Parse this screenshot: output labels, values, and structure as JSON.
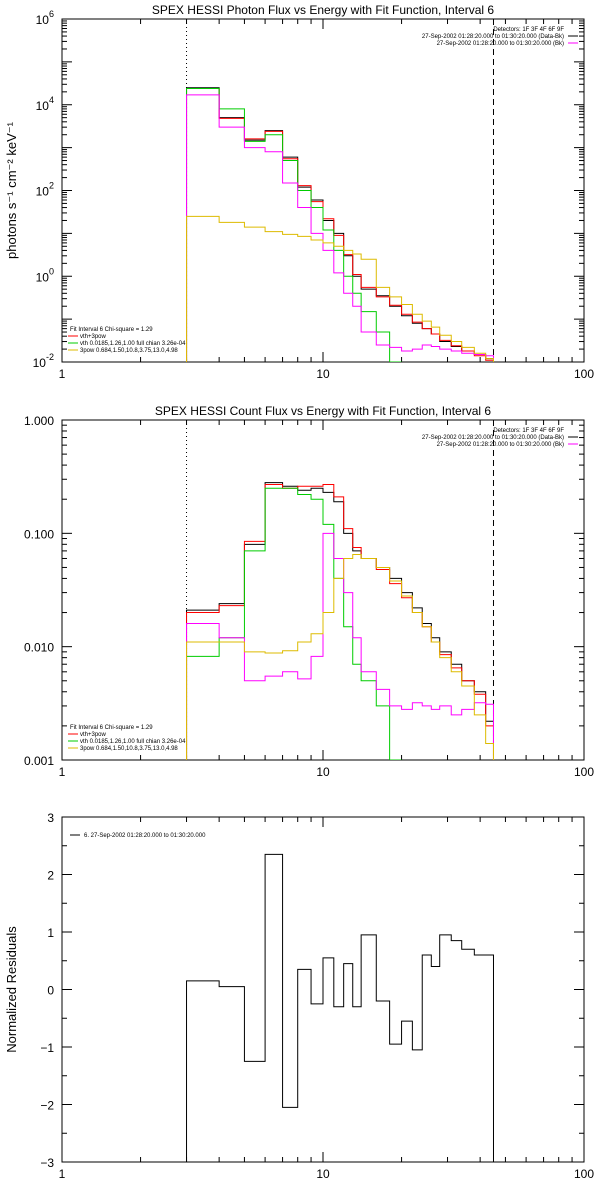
{
  "chart_data": [
    {
      "type": "line",
      "step": true,
      "title": "SPEX HESSI Photon Flux vs Energy with Fit Function, Interval 6",
      "ylabel": "photons s⁻¹ cm⁻² keV⁻¹",
      "xscale": "log",
      "yscale": "log",
      "xlim": [
        1,
        100
      ],
      "ylim": [
        0.01,
        1000000
      ],
      "x_ticks": [
        {
          "value": 1,
          "label": "1"
        },
        {
          "value": 10,
          "label": "10"
        },
        {
          "value": 100,
          "label": "100"
        }
      ],
      "y_ticks": [
        {
          "value": 0.01,
          "base": "10",
          "exp": "-2"
        },
        {
          "value": 1,
          "base": "10",
          "exp": "0"
        },
        {
          "value": 100,
          "base": "10",
          "exp": "2"
        },
        {
          "value": 10000,
          "base": "10",
          "exp": "4"
        },
        {
          "value": 1000000,
          "base": "10",
          "exp": "6"
        }
      ],
      "vlines": [
        {
          "x": 3,
          "style": "dotted"
        },
        {
          "x": 45,
          "style": "dashed"
        }
      ],
      "legend_topright": [
        {
          "text": "Detectors: 1F 3F 4F 6F 9F",
          "color": ""
        },
        {
          "text": "27-Sep-2002 01:28:20.000 to 01:30:20.000 (Data-Bk)",
          "color": "#000000"
        },
        {
          "text": "27-Sep-2002 01:28:20.000 to 01:30:20.000 (Bk)",
          "color": "#ff00ff"
        }
      ],
      "legend_bottomleft": [
        {
          "text": "Fit Interval 6    Chi-square = 1.29",
          "color": ""
        },
        {
          "text": "vth+3pow",
          "color": "#ff0000"
        },
        {
          "text": "vth 0.0185,1.26,1.00  full chian 3.26e-04",
          "color": "#00cc00"
        },
        {
          "text": "3pow 0.684,1.50,10.8,3.75,13.0,4.98",
          "color": "#ddbb00"
        }
      ],
      "edges": [
        3,
        4,
        5,
        6,
        7,
        8,
        9,
        10,
        11,
        12,
        13,
        14,
        16,
        18,
        20,
        22,
        24,
        26,
        28,
        31,
        34,
        38,
        42,
        45
      ],
      "series": [
        {
          "color": "#000000",
          "values": [
            25000,
            5000,
            1500,
            2500,
            600,
            120,
            60,
            20,
            10,
            3,
            1,
            0.5,
            0.35,
            0.2,
            0.12,
            0.08,
            0.06,
            0.045,
            0.03,
            0.023,
            0.018,
            0.015,
            0.012
          ]
        },
        {
          "color": "#ff0000",
          "values": [
            24000,
            4800,
            1600,
            2400,
            550,
            130,
            55,
            22,
            9,
            3.2,
            1.1,
            0.55,
            0.33,
            0.21,
            0.13,
            0.085,
            0.06,
            0.045,
            0.032,
            0.024,
            0.018,
            0.014,
            0.011
          ]
        },
        {
          "color": "#00cc00",
          "values": [
            24000,
            8000,
            1400,
            2000,
            500,
            100,
            40,
            12,
            4,
            1,
            0.4,
            0.15,
            0.05,
            0.01
          ]
        },
        {
          "color": "#ff00ff",
          "values": [
            17000,
            3000,
            1000,
            800,
            150,
            40,
            10,
            4,
            1.2,
            0.4,
            0.2,
            0.05,
            0.025,
            0.022,
            0.018,
            0.02,
            0.025,
            0.023,
            0.02,
            0.018,
            0.016,
            0.015,
            0.014
          ]
        },
        {
          "color": "#ddbb00",
          "values": [
            25,
            18,
            14,
            11,
            9.5,
            8.5,
            7,
            6,
            5,
            4,
            3.3,
            2.5,
            0.55,
            0.33,
            0.22,
            0.13,
            0.09,
            0.065,
            0.042,
            0.03,
            0.022,
            0.016,
            0.012
          ]
        }
      ]
    },
    {
      "type": "line",
      "step": true,
      "title": "SPEX HESSI Count Flux vs Energy with Fit Function, Interval 6",
      "ylabel": "",
      "xscale": "log",
      "yscale": "log",
      "xlim": [
        1,
        100
      ],
      "ylim": [
        0.001,
        1
      ],
      "x_ticks": [
        {
          "value": 1,
          "label": "1"
        },
        {
          "value": 10,
          "label": "10"
        },
        {
          "value": 100,
          "label": "100"
        }
      ],
      "y_ticks": [
        {
          "value": 0.001,
          "label": "0.001"
        },
        {
          "value": 0.01,
          "label": "0.010"
        },
        {
          "value": 0.1,
          "label": "0.100"
        },
        {
          "value": 1,
          "label": "1.000"
        }
      ],
      "vlines": [
        {
          "x": 3,
          "style": "dotted"
        },
        {
          "x": 45,
          "style": "dashed"
        }
      ],
      "legend_topright": [
        {
          "text": "Detectors: 1F 3F 4F 6F 9F",
          "color": ""
        },
        {
          "text": "27-Sep-2002 01:28:20.000 to 01:30:20.000 (Data-Bk)",
          "color": "#000000"
        },
        {
          "text": "27-Sep-2002 01:28:20.000 to 01:30:20.000 (Bk)",
          "color": "#ff00ff"
        }
      ],
      "legend_bottomleft": [
        {
          "text": "Fit Interval 6    Chi-square = 1.29",
          "color": ""
        },
        {
          "text": "vth+3pow",
          "color": "#ff0000"
        },
        {
          "text": "vth 0.0185,1.26,1.00  full chian 3.26e-04",
          "color": "#00cc00"
        },
        {
          "text": "3pow 0.684,1.50,10.8,3.75,13.0,4.98",
          "color": "#ddbb00"
        }
      ],
      "edges": [
        3,
        4,
        5,
        6,
        7,
        8,
        9,
        10,
        11,
        12,
        13,
        14,
        16,
        18,
        20,
        22,
        24,
        26,
        28,
        31,
        34,
        38,
        42,
        45
      ],
      "series": [
        {
          "color": "#000000",
          "values": [
            0.021,
            0.024,
            0.08,
            0.28,
            0.26,
            0.24,
            0.25,
            0.23,
            0.19,
            0.1,
            0.07,
            0.06,
            0.05,
            0.04,
            0.03,
            0.022,
            0.016,
            0.012,
            0.009,
            0.007,
            0.005,
            0.004,
            0.0022
          ]
        },
        {
          "color": "#ff0000",
          "values": [
            0.02,
            0.023,
            0.085,
            0.27,
            0.25,
            0.26,
            0.26,
            0.27,
            0.21,
            0.11,
            0.075,
            0.06,
            0.048,
            0.036,
            0.027,
            0.02,
            0.015,
            0.011,
            0.0085,
            0.0065,
            0.005,
            0.0038,
            0.002
          ]
        },
        {
          "color": "#00cc00",
          "values": [
            0.0082,
            0.012,
            0.07,
            0.25,
            0.25,
            0.22,
            0.2,
            0.12,
            0.04,
            0.015,
            0.007,
            0.005,
            0.003,
            0.001
          ]
        },
        {
          "color": "#ff00ff",
          "values": [
            0.016,
            0.012,
            0.005,
            0.0055,
            0.006,
            0.0052,
            0.0082,
            0.1,
            0.06,
            0.03,
            0.012,
            0.006,
            0.0042,
            0.003,
            0.0028,
            0.0032,
            0.003,
            0.0028,
            0.003,
            0.0025,
            0.0028,
            0.0032,
            0.0031
          ]
        },
        {
          "color": "#ddbb00",
          "values": [
            0.011,
            0.011,
            0.009,
            0.0088,
            0.0092,
            0.011,
            0.013,
            0.02,
            0.04,
            0.06,
            0.065,
            0.06,
            0.05,
            0.038,
            0.028,
            0.02,
            0.015,
            0.011,
            0.008,
            0.006,
            0.0045,
            0.0025,
            0.0014
          ]
        }
      ]
    },
    {
      "type": "line",
      "step": true,
      "title": "",
      "ylabel": "Normalized Residuals",
      "xscale": "log",
      "yscale": "linear",
      "xlim": [
        1,
        100
      ],
      "ylim": [
        -3,
        3
      ],
      "x_ticks": [
        {
          "value": 1,
          "label": "1"
        },
        {
          "value": 10,
          "label": "10"
        },
        {
          "value": 100,
          "label": "100"
        }
      ],
      "y_ticks": [
        {
          "value": -3,
          "label": "−3"
        },
        {
          "value": -2,
          "label": "−2"
        },
        {
          "value": -1,
          "label": "−1"
        },
        {
          "value": 0,
          "label": "0"
        },
        {
          "value": 1,
          "label": "1"
        },
        {
          "value": 2,
          "label": "2"
        },
        {
          "value": 3,
          "label": "3"
        }
      ],
      "vlines": [],
      "legend_topleft": [
        {
          "text": "6. 27-Sep-2002 01:28:20.000 to 01:30:20.000",
          "color": "#000000"
        }
      ],
      "edges": [
        3,
        4,
        5,
        6,
        7,
        8,
        9,
        10,
        11,
        12,
        13,
        14,
        16,
        18,
        20,
        22,
        24,
        26,
        28,
        31,
        34,
        38,
        42,
        45
      ],
      "series": [
        {
          "color": "#000000",
          "values": [
            0.15,
            0.05,
            -1.25,
            2.35,
            -2.05,
            0.35,
            -0.25,
            0.55,
            -0.3,
            0.45,
            -0.3,
            0.95,
            -0.2,
            -0.95,
            -0.55,
            -1.05,
            0.6,
            0.4,
            0.95,
            0.85,
            0.7,
            0.6,
            0.6
          ]
        }
      ]
    }
  ]
}
